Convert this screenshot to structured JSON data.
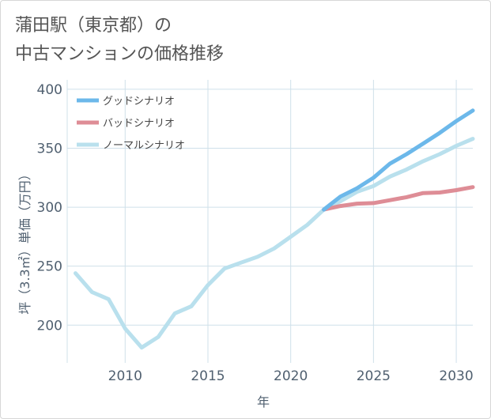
{
  "title": {
    "line1": "蒲田駅（東京都）の",
    "line2": "中古マンションの価格推移"
  },
  "chart_data": {
    "type": "line",
    "xlabel": "年",
    "ylabel": "坪（3.3㎡）単価（万円）",
    "xlim": [
      2006.5,
      2031
    ],
    "ylim": [
      168,
      408
    ],
    "xticks": [
      2010,
      2015,
      2020,
      2025,
      2030
    ],
    "yticks": [
      200,
      250,
      300,
      350,
      400
    ],
    "grid": true,
    "legend_position": "top-left",
    "series": [
      {
        "name": "グッドシナリオ",
        "color": "#6cb8ea",
        "x": [
          2022,
          2023,
          2024,
          2025,
          2026,
          2027,
          2028,
          2029,
          2030,
          2031
        ],
        "y": [
          298,
          309,
          316,
          325,
          337,
          345,
          354,
          363,
          373,
          382
        ]
      },
      {
        "name": "バッドシナリオ",
        "color": "#de8d96",
        "x": [
          2022,
          2023,
          2024,
          2025,
          2026,
          2027,
          2028,
          2029,
          2030,
          2031
        ],
        "y": [
          298,
          301,
          303,
          303.5,
          306,
          308.5,
          312,
          312.5,
          314.5,
          317
        ]
      },
      {
        "name": "ノーマルシナリオ",
        "color": "#b9e0ed",
        "x": [
          2007,
          2008,
          2009,
          2010,
          2011,
          2012,
          2013,
          2014,
          2015,
          2016,
          2017,
          2018,
          2019,
          2020,
          2021,
          2022,
          2023,
          2024,
          2025,
          2026,
          2027,
          2028,
          2029,
          2030,
          2031
        ],
        "y": [
          244,
          228,
          222,
          197,
          181,
          190,
          210,
          216,
          234,
          248,
          253,
          258,
          265,
          275,
          285,
          298,
          305,
          313,
          318,
          326,
          332,
          339,
          345,
          352,
          358
        ]
      }
    ]
  }
}
